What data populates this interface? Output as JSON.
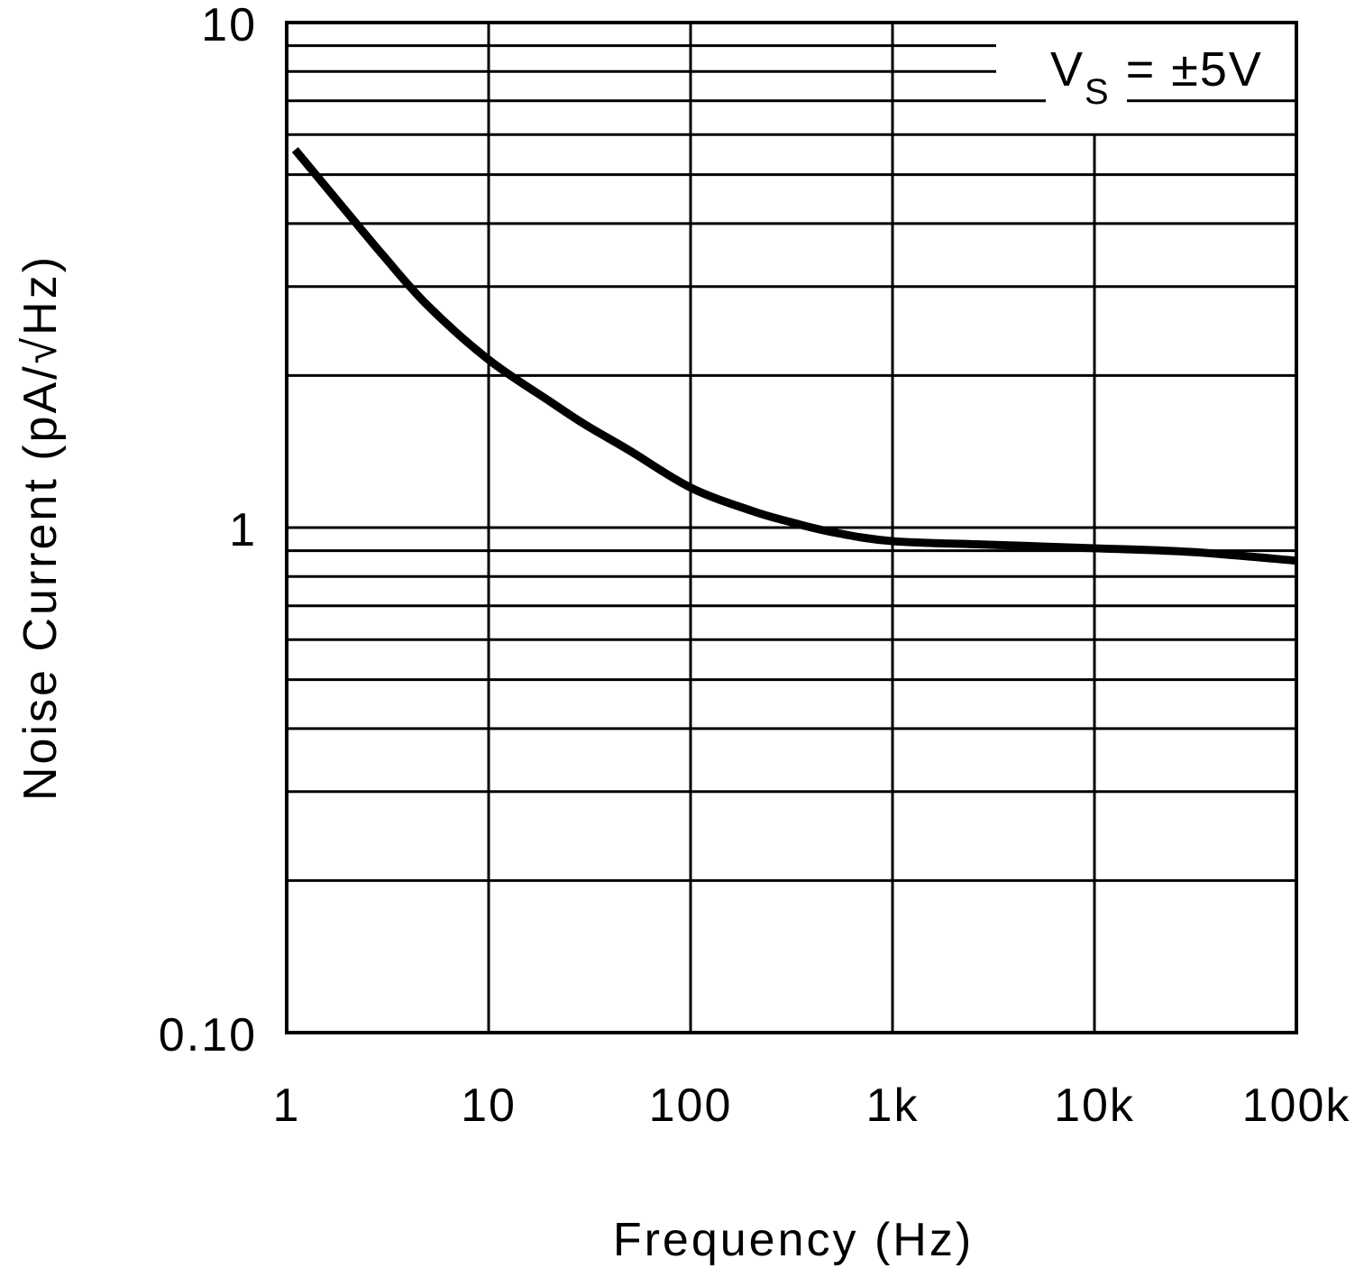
{
  "chart_data": {
    "type": "line",
    "title": "",
    "xlabel": "Frequency (Hz)",
    "ylabel": "Noise Current (pA/√Hz)",
    "x_scale": "log",
    "y_scale": "log",
    "xlim": [
      1,
      100000
    ],
    "ylim": [
      0.1,
      10
    ],
    "grid": true,
    "x_ticks": [
      1,
      10,
      100,
      1000,
      10000,
      100000
    ],
    "x_tick_labels": [
      "1",
      "10",
      "100",
      "1k",
      "10k",
      "100k"
    ],
    "y_ticks": [
      0.1,
      1,
      10
    ],
    "y_tick_labels": [
      "0.10",
      "1",
      "10"
    ],
    "annotation": {
      "main": "V",
      "sub": "S",
      "rest": " = ±5V"
    },
    "series": [
      {
        "x": [
          1.1,
          2,
          3,
          5,
          10,
          20,
          30,
          50,
          100,
          200,
          300,
          500,
          1000,
          3000,
          10000,
          30000,
          100000
        ],
        "y": [
          5.6,
          4.2,
          3.46,
          2.75,
          2.15,
          1.78,
          1.6,
          1.42,
          1.2,
          1.08,
          1.03,
          0.98,
          0.94,
          0.925,
          0.91,
          0.895,
          0.86
        ],
        "color": "#000000"
      }
    ]
  }
}
